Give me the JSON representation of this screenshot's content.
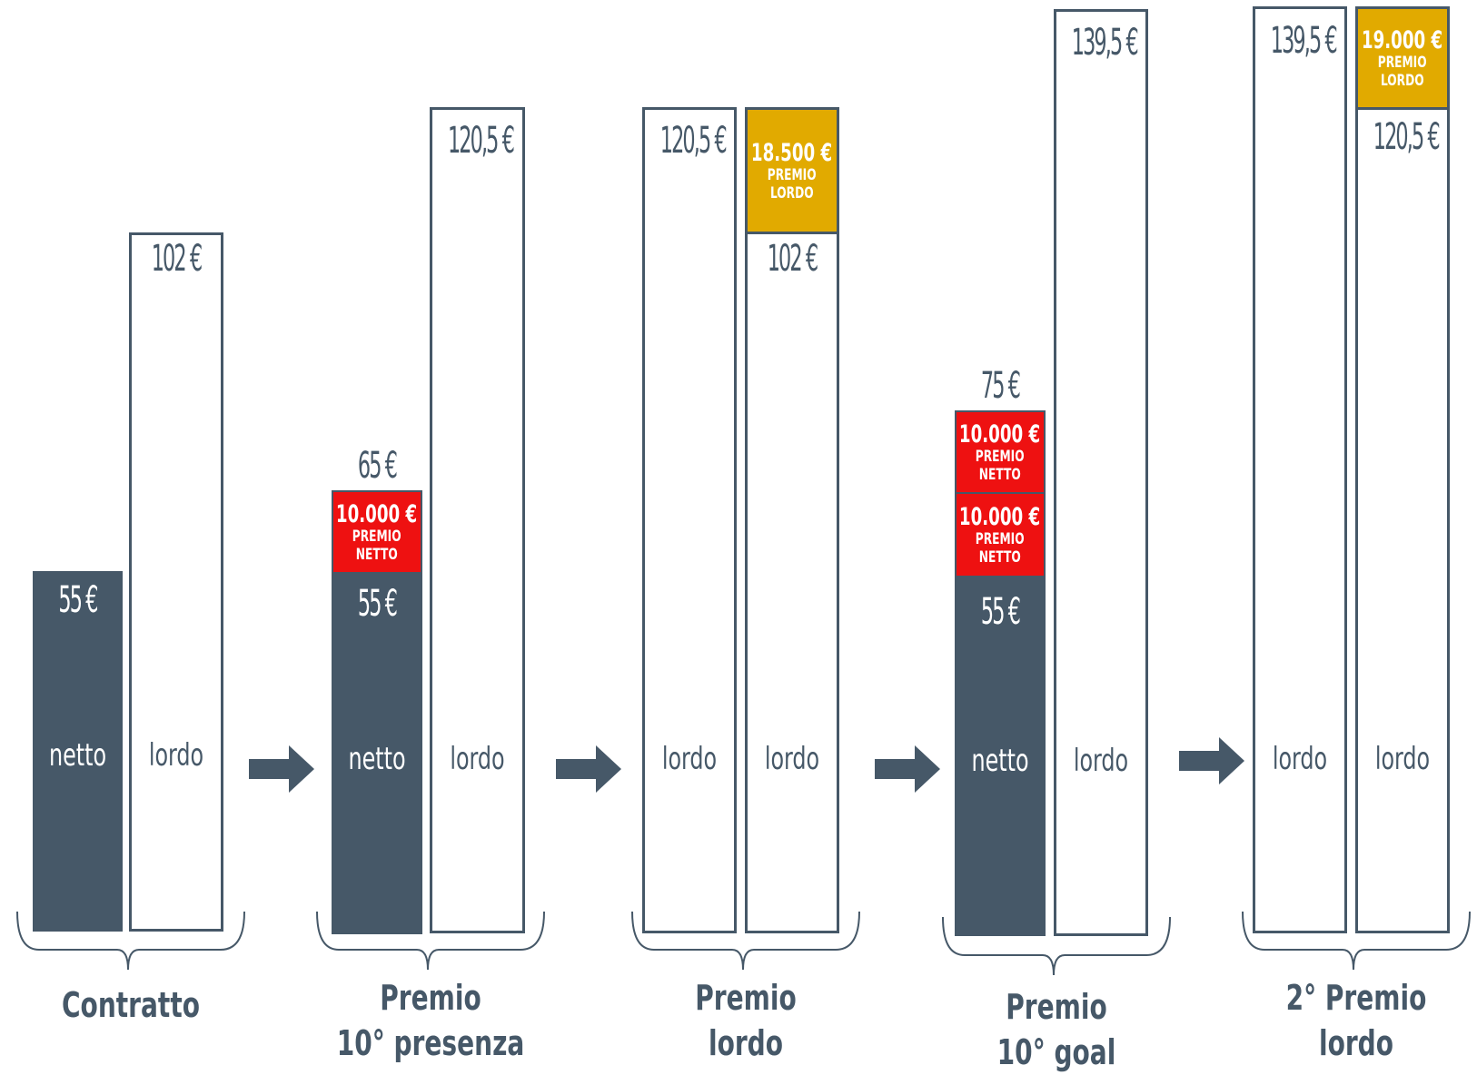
{
  "colors": {
    "dark": "#465868",
    "red": "#ee1111",
    "gold": "#e1aa00"
  },
  "icons": {
    "arrow": "right-arrow-icon",
    "brace": "curly-brace-icon"
  },
  "stages": [
    {
      "caption_lines": [
        "Contratto"
      ],
      "netto": {
        "value": "55 €",
        "label": "netto"
      },
      "lordo": {
        "value": "102 €",
        "label": "lordo"
      }
    },
    {
      "caption_lines": [
        "Premio",
        "10° presenza"
      ],
      "netto": {
        "value": "55 €",
        "label": "netto",
        "total": "65 €",
        "bonuses": [
          {
            "amount": "10.000 €",
            "line1": "PREMIO",
            "line2": "NETTO"
          }
        ]
      },
      "lordo": {
        "value": "120,5 €",
        "label": "lordo"
      }
    },
    {
      "caption_lines": [
        "Premio",
        "lordo"
      ],
      "left_lordo": {
        "value": "120,5 €",
        "label": "lordo"
      },
      "right_lordo": {
        "value": "102 €",
        "label": "lordo",
        "bonus": {
          "amount": "18.500 €",
          "line1": "PREMIO",
          "line2": "LORDO"
        }
      }
    },
    {
      "caption_lines": [
        "Premio",
        "10° goal"
      ],
      "netto": {
        "value": "55 €",
        "label": "netto",
        "total": "75 €",
        "bonuses": [
          {
            "amount": "10.000 €",
            "line1": "PREMIO",
            "line2": "NETTO"
          },
          {
            "amount": "10.000 €",
            "line1": "PREMIO",
            "line2": "NETTO"
          }
        ]
      },
      "lordo": {
        "value": "139,5 €",
        "label": "lordo"
      }
    },
    {
      "caption_lines": [
        "2° Premio",
        "lordo"
      ],
      "left_lordo": {
        "value": "139,5 €",
        "label": "lordo"
      },
      "right_lordo": {
        "value": "120,5 €",
        "label": "lordo",
        "bonus": {
          "amount": "19.000 €",
          "line1": "PREMIO",
          "line2": "LORDO"
        }
      }
    }
  ]
}
